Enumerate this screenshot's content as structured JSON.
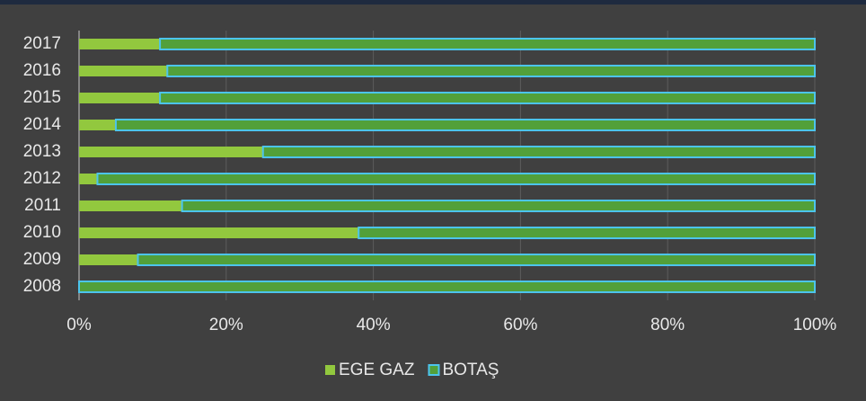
{
  "chart_data": {
    "type": "stacked-barh",
    "categories": [
      "2017",
      "2016",
      "2015",
      "2014",
      "2013",
      "2012",
      "2011",
      "2010",
      "2009",
      "2008"
    ],
    "series": [
      {
        "name": "EGE GAZ",
        "color": "#92c83e",
        "values": [
          11,
          12,
          11,
          5,
          25,
          2.5,
          14,
          38,
          8,
          0
        ]
      },
      {
        "name": "BOTAŞ",
        "color": "#52a03a",
        "edge_color": "#4cc4ec",
        "values": [
          89,
          88,
          89,
          95,
          75,
          97.5,
          86,
          62,
          92,
          100
        ]
      }
    ],
    "xlim": [
      0,
      100
    ],
    "xticks": [
      {
        "value": 0,
        "label": "0%"
      },
      {
        "value": 20,
        "label": "20%"
      },
      {
        "value": 40,
        "label": "40%"
      },
      {
        "value": 60,
        "label": "60%"
      },
      {
        "value": 80,
        "label": "80%"
      },
      {
        "value": 100,
        "label": "100%"
      }
    ],
    "grid": true,
    "legend": "bottom"
  }
}
